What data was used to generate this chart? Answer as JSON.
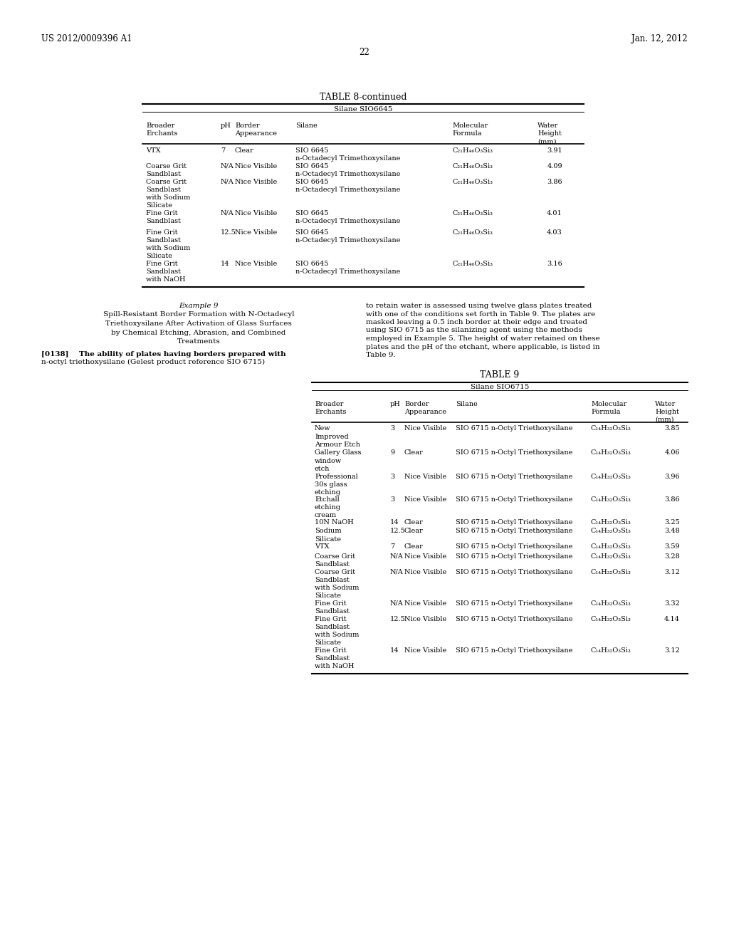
{
  "page_num": "22",
  "patent_num": "US 2012/0009396 A1",
  "patent_date": "Jan. 12, 2012",
  "bg_color": "#ffffff",
  "font_size_small": 7.0,
  "font_size_body": 7.5,
  "font_size_title": 9.0,
  "font_size_header": 8.5,
  "table8_title": "TABLE 8-continued",
  "table8_subtitle": "Silane SIO6645",
  "table8_col_headers": [
    "Broader\nErchants",
    "pH",
    "Border\nAppearance",
    "Silane",
    "Molecular\nFormula",
    "Water\nHeight\n(mm)"
  ],
  "table8_rows": [
    [
      "VTX",
      "7",
      "Clear",
      "SIO 6645\nn-Octadecyl Trimethoxysilane",
      "C₂₁H₄₆O₃Si₃",
      "3.91"
    ],
    [
      "Coarse Grit\nSandblast",
      "N/A",
      "Nice Visible",
      "SIO 6645\nn-Octadecyl Trimethoxysilane",
      "C₂₁H₄₆O₃Si₃",
      "4.09"
    ],
    [
      "Coarse Grit\nSandblast\nwith Sodium\nSilicate",
      "N/A",
      "Nice Visible",
      "SIO 6645\nn-Octadecyl Trimethoxysilane",
      "C₂₁H₄₆O₃Si₃",
      "3.86"
    ],
    [
      "Fine Grit\nSandblast",
      "N/A",
      "Nice Visible",
      "SIO 6645\nn-Octadecyl Trimethoxysilane",
      "C₂₁H₄₆O₃Si₃",
      "4.01"
    ],
    [
      "Fine Grit\nSandblast\nwith Sodium\nSilicate",
      "12.5",
      "Nice Visible",
      "SIO 6645\nn-Octadecyl Trimethoxysilane",
      "C₂₁H₄₆O₃Si₃",
      "4.03"
    ],
    [
      "Fine Grit\nSandblast\nwith NaOH",
      "14",
      "Nice Visible",
      "SIO 6645\nn-Octadecyl Trimethoxysilane",
      "C₂₁H₄₆O₃Si₃",
      "3.16"
    ]
  ],
  "example9_lines": [
    "Example 9",
    "Spill-Resistant Border Formation with N-Octadecyl",
    "Triethoxysilane After Activation of Glass Surfaces",
    "by Chemical Etching, Abrasion, and Combined",
    "Treatments"
  ],
  "para138_lines": [
    "[0138]    The ability of plates having borders prepared with",
    "n-octyl triethoxysilane (Gelest product reference SIO 6715)"
  ],
  "right_para_lines": [
    "to retain water is assessed using twelve glass plates treated",
    "with one of the conditions set forth in Table 9. The plates are",
    "masked leaving a 0.5 inch border at their edge and treated",
    "using SIO 6715 as the silanizing agent using the methods",
    "employed in Example 5. The height of water retained on these",
    "plates and the pH of the etchant, where applicable, is listed in",
    "Table 9."
  ],
  "table9_title": "TABLE 9",
  "table9_subtitle": "Silane SIO6715",
  "table9_col_headers": [
    "Broader\nErchants",
    "pH",
    "Border\nAppearance",
    "Silane",
    "Molecular\nFormula",
    "Water\nHeight\n(mm)"
  ],
  "table9_rows": [
    [
      "New\nImproved\nArmour Etch",
      "3",
      "Nice Visible",
      "SIO 6715 n-Octyl Triethoxysilane",
      "C₁₄H₃₂O₃Si₃",
      "3.85"
    ],
    [
      "Gallery Glass\nwindow\netch",
      "9",
      "Clear",
      "SIO 6715 n-Octyl Triethoxysilane",
      "C₁₄H₃₂O₃Si₃",
      "4.06"
    ],
    [
      "Professional\n30s glass\netching",
      "3",
      "Nice Visible",
      "SIO 6715 n-Octyl Triethoxysilane",
      "C₁₄H₃₂O₃Si₃",
      "3.96"
    ],
    [
      "Etchall\netching\ncream",
      "3",
      "Nice Visible",
      "SIO 6715 n-Octyl Triethoxysilane",
      "C₁₄H₃₂O₃Si₃",
      "3.86"
    ],
    [
      "10N NaOH",
      "14",
      "Clear",
      "SIO 6715 n-Octyl Triethoxysilane",
      "C₁₄H₃₂O₃Si₃",
      "3.25"
    ],
    [
      "Sodium\nSilicate",
      "12.5",
      "Clear",
      "SIO 6715 n-Octyl Triethoxysilane",
      "C₁₄H₃₂O₃Si₃",
      "3.48"
    ],
    [
      "VTX",
      "7",
      "Clear",
      "SIO 6715 n-Octyl Triethoxysilane",
      "C₁₄H₃₂O₃Si₃",
      "3.59"
    ],
    [
      "Coarse Grit\nSandblast",
      "N/A",
      "Nice Visible",
      "SIO 6715 n-Octyl Triethoxysilane",
      "C₁₄H₃₂O₃Si₃",
      "3.28"
    ],
    [
      "Coarse Grit\nSandblast\nwith Sodium\nSilicate",
      "N/A",
      "Nice Visible",
      "SIO 6715 n-Octyl Triethoxysilane",
      "C₁₄H₃₂O₃Si₃",
      "3.12"
    ],
    [
      "Fine Grit\nSandblast",
      "N/A",
      "Nice Visible",
      "SIO 6715 n-Octyl Triethoxysilane",
      "C₁₄H₃₂O₃Si₃",
      "3.32"
    ],
    [
      "Fine Grit\nSandblast\nwith Sodium\nSilicate",
      "12.5",
      "Nice Visible",
      "SIO 6715 n-Octyl Triethoxysilane",
      "C₁₄H₃₂O₃Si₃",
      "4.14"
    ],
    [
      "Fine Grit\nSandblast\nwith NaOH",
      "14",
      "Nice Visible",
      "SIO 6715 n-Octyl Triethoxysilane",
      "C₁₄H₃₂O₃Si₃",
      "3.12"
    ]
  ]
}
